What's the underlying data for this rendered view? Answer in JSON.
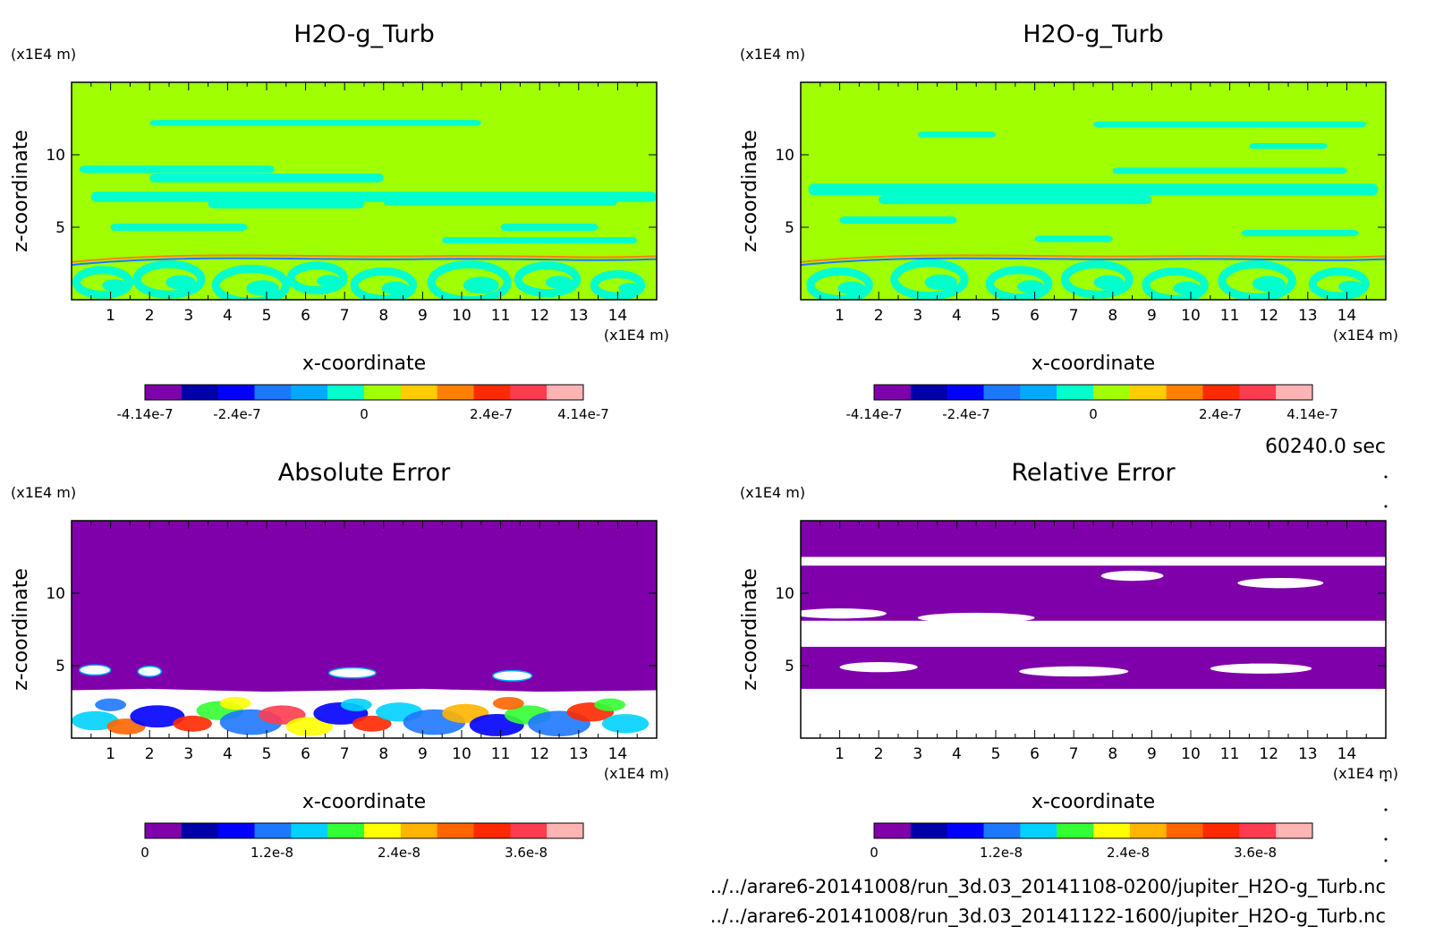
{
  "panels": [
    {
      "title": "H2O-g_Turb",
      "type": "field",
      "colorbar": {
        "ticks": [
          "-4.14e-7",
          "-2.4e-7",
          "0",
          "2.4e-7",
          "4.14e-7"
        ]
      }
    },
    {
      "title": "H2O-g_Turb",
      "type": "field",
      "colorbar": {
        "ticks": [
          "-4.14e-7",
          "-2.4e-7",
          "0",
          "2.4e-7",
          "4.14e-7"
        ]
      }
    },
    {
      "title": "Absolute Error",
      "type": "abs",
      "colorbar": {
        "ticks": [
          "0",
          "1.2e-8",
          "2.4e-8",
          "3.6e-8"
        ]
      }
    },
    {
      "title": "Relative Error",
      "type": "rel",
      "colorbar": {
        "ticks": [
          "0",
          "1.2e-8",
          "2.4e-8",
          "3.6e-8"
        ]
      }
    }
  ],
  "axes": {
    "xlabel": "x-coordinate",
    "ylabel": "z-coordinate",
    "x_unit": "(x1E4 m)",
    "y_unit": "(x1E4 m)",
    "x_ticks": [
      "1",
      "2",
      "3",
      "4",
      "5",
      "6",
      "7",
      "8",
      "9",
      "10",
      "11",
      "12",
      "13",
      "14"
    ],
    "y_ticks": [
      "5",
      "10"
    ]
  },
  "time_label": "60240.0 sec",
  "files": [
    "../../arare6-20141008/run_3d.03_20141108-0200/jupiter_H2O-g_Turb.nc",
    "../../arare6-20141008/run_3d.03_20141122-1600/jupiter_H2O-g_Turb.nc"
  ],
  "colors": {
    "field_background": "#a0ff00",
    "field_anomaly": "#00ffcc",
    "error_background": "#7f00aa",
    "diverging_scale": [
      "#7f00aa",
      "#0000aa",
      "#0000ff",
      "#1e78ff",
      "#00aaff",
      "#00ffcc",
      "#a0ff00",
      "#ffcc00",
      "#ff8000",
      "#ff2a00",
      "#ff3c50",
      "#ffb4b4"
    ],
    "error_scale": [
      "#7f00aa",
      "#0000aa",
      "#0000ff",
      "#1e78ff",
      "#00d2ff",
      "#33ff33",
      "#ffff00",
      "#ffb400",
      "#ff6400",
      "#ff2800",
      "#ff3c50",
      "#ffb4b4"
    ]
  },
  "chart_data": [
    {
      "type": "heatmap",
      "title": "H2O-g_Turb",
      "xlabel": "x-coordinate",
      "ylabel": "z-coordinate",
      "xlim": [
        0,
        15
      ],
      "ylim": [
        0,
        15
      ],
      "colorbar_range": [
        -4.14e-07,
        4.14e-07
      ],
      "colorbar_ticks": [
        -4.14e-07,
        -2.4e-07,
        0,
        2.4e-07,
        4.14e-07
      ]
    },
    {
      "type": "heatmap",
      "title": "H2O-g_Turb",
      "xlabel": "x-coordinate",
      "ylabel": "z-coordinate",
      "xlim": [
        0,
        15
      ],
      "ylim": [
        0,
        15
      ],
      "colorbar_range": [
        -4.14e-07,
        4.14e-07
      ],
      "colorbar_ticks": [
        -4.14e-07,
        -2.4e-07,
        0,
        2.4e-07,
        4.14e-07
      ]
    },
    {
      "type": "heatmap",
      "title": "Absolute Error",
      "xlabel": "x-coordinate",
      "ylabel": "z-coordinate",
      "xlim": [
        0,
        15
      ],
      "ylim": [
        0,
        15
      ],
      "colorbar_range": [
        0,
        4.14e-08
      ],
      "colorbar_ticks": [
        0,
        1.2e-08,
        2.4e-08,
        3.6e-08
      ]
    },
    {
      "type": "heatmap",
      "title": "Relative Error",
      "xlabel": "x-coordinate",
      "ylabel": "z-coordinate",
      "xlim": [
        0,
        15
      ],
      "ylim": [
        0,
        15
      ],
      "colorbar_range": [
        0,
        4.14e-08
      ],
      "colorbar_ticks": [
        0,
        1.2e-08,
        2.4e-08,
        3.6e-08
      ]
    }
  ]
}
